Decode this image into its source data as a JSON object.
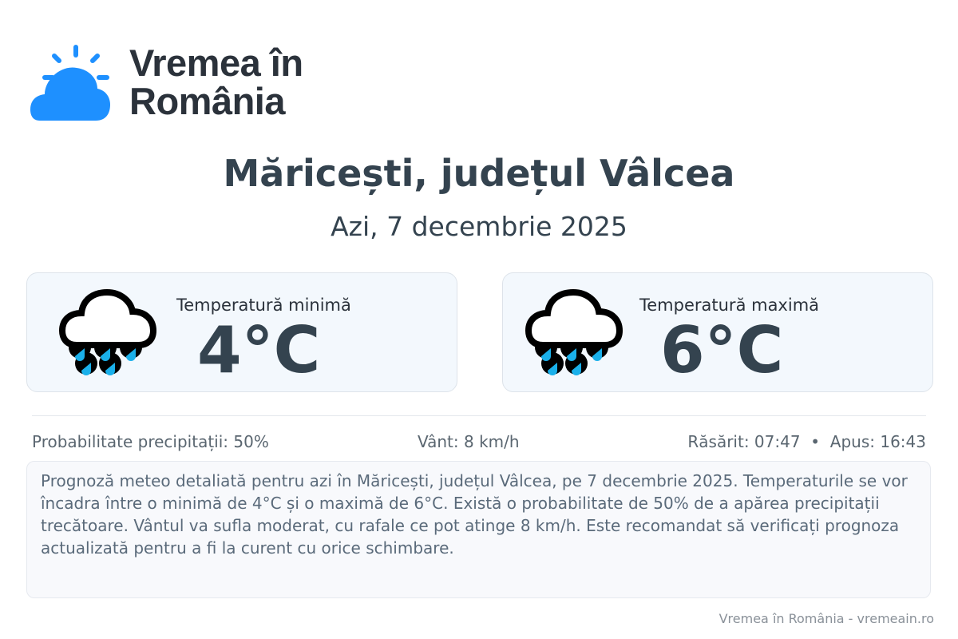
{
  "logo": {
    "line1": "Vremea în",
    "line2": "România",
    "icon": "sun-cloud-icon",
    "color": "#1e90ff"
  },
  "header": {
    "title": "Măricești, județul Vâlcea",
    "subtitle": "Azi, 7 decembrie 2025"
  },
  "cards": [
    {
      "label": "Temperatură minimă",
      "value": "4°C",
      "icon": "rain-cloud-icon"
    },
    {
      "label": "Temperatură maximă",
      "value": "6°C",
      "icon": "rain-cloud-icon"
    }
  ],
  "info": {
    "precipitation": "Probabilitate precipitații: 50%",
    "wind": "Vânt: 8 km/h",
    "sun": "Răsărit: 07:47  •  Apus: 16:43"
  },
  "description": "Prognoză meteo detaliată pentru azi în Măricești, județul Vâlcea, pe 7 decembrie 2025. Temperaturile se vor încadra între o minimă de 4°C și o maximă de 6°C. Există o probabilitate de 50% de a apărea precipitații trecătoare. Vântul va sufla moderat, cu rafale ce pot atinge 8 km/h. Este recomandat să verificați prognoza actualizată pentru a fi la curent cu orice schimbare.",
  "footer": "Vremea în România - vremeain.ro",
  "colors": {
    "rain_drop": "#1ab0ea",
    "card_bg": "#f3f8fd"
  }
}
